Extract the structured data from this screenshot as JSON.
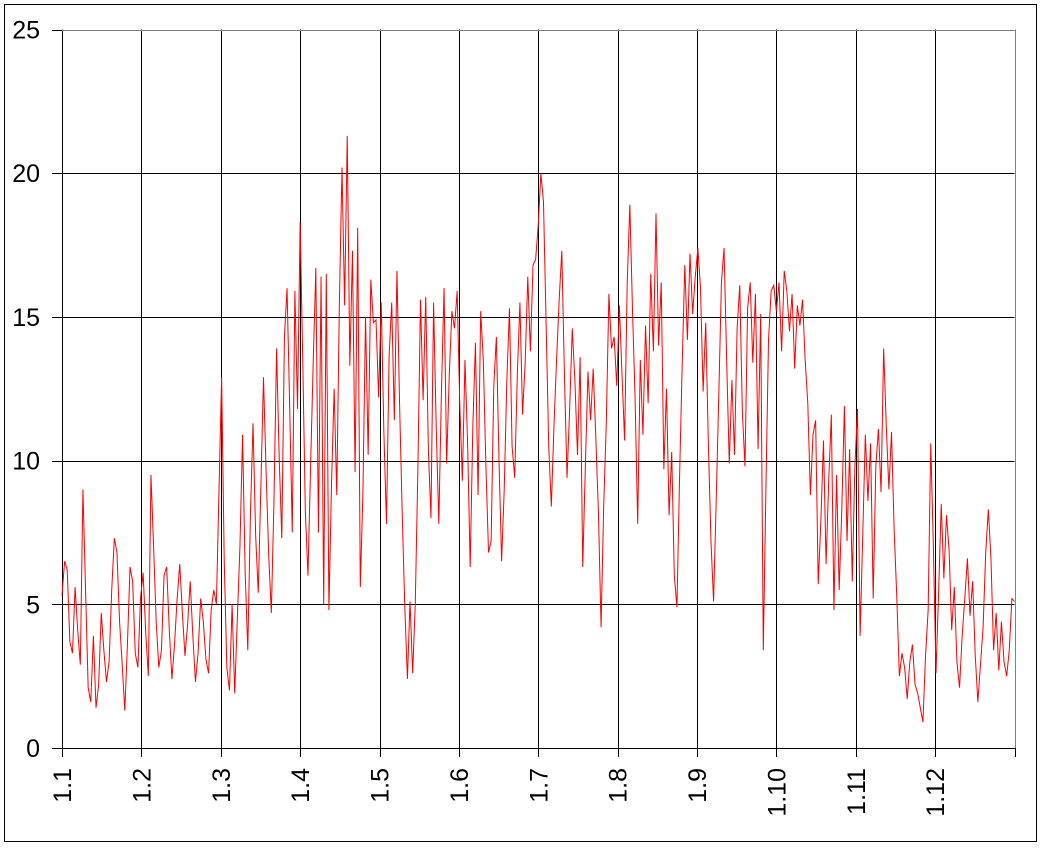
{
  "chart_data": {
    "type": "line",
    "title": "",
    "xlabel": "",
    "ylabel": "",
    "x_tick_labels": [
      "1.1",
      "1.2",
      "1.3",
      "1.4",
      "1.5",
      "1.6",
      "1.7",
      "1.8",
      "1.9",
      "1.10",
      "1.11",
      "1.12"
    ],
    "y_ticks": [
      0,
      5,
      10,
      15,
      20,
      25
    ],
    "ylim": [
      0,
      25
    ],
    "grid": true,
    "legend": false,
    "line_color": "#FF0000",
    "values": [
      5.3,
      6.5,
      6.2,
      3.7,
      3.3,
      5.6,
      4.1,
      2.9,
      9.0,
      5.5,
      2.1,
      1.6,
      3.9,
      1.4,
      2.2,
      4.7,
      3.4,
      2.3,
      3.0,
      5.5,
      7.3,
      6.8,
      4.4,
      2.9,
      1.3,
      3.6,
      6.3,
      5.8,
      3.3,
      2.8,
      5.2,
      6.1,
      4.0,
      2.5,
      9.5,
      7.0,
      4.4,
      2.8,
      3.4,
      6.0,
      6.3,
      4.1,
      2.4,
      3.6,
      5.2,
      6.4,
      4.7,
      3.2,
      4.3,
      5.8,
      3.9,
      2.3,
      3.3,
      5.2,
      4.4,
      3.1,
      2.6,
      4.8,
      5.5,
      5.0,
      9.0,
      12.9,
      6.5,
      2.8,
      2.0,
      5.0,
      1.9,
      4.5,
      7.0,
      10.9,
      6.1,
      3.4,
      8.1,
      11.3,
      7.4,
      5.4,
      9.1,
      12.9,
      9.6,
      6.7,
      4.7,
      8.6,
      13.9,
      10.1,
      7.3,
      14.3,
      16.0,
      11.9,
      7.5,
      15.9,
      11.8,
      18.3,
      13.5,
      8.2,
      6.0,
      9.8,
      13.4,
      16.7,
      7.5,
      16.4,
      5.0,
      16.5,
      4.8,
      9.2,
      12.5,
      8.8,
      15.5,
      20.2,
      15.4,
      21.3,
      13.3,
      17.3,
      9.6,
      18.1,
      5.6,
      8.9,
      15.0,
      10.2,
      16.3,
      14.8,
      14.9,
      12.2,
      15.5,
      11.0,
      7.8,
      13.6,
      15.5,
      11.4,
      16.6,
      12.0,
      8.2,
      4.9,
      2.4,
      5.1,
      2.6,
      5.0,
      9.7,
      15.6,
      12.1,
      15.7,
      10.4,
      8.0,
      15.5,
      11.2,
      7.8,
      12.4,
      16.0,
      9.9,
      13.0,
      15.2,
      14.6,
      15.9,
      12.0,
      9.3,
      13.5,
      10.6,
      6.3,
      11.2,
      14.1,
      8.8,
      15.2,
      13.5,
      9.8,
      6.8,
      7.2,
      12.6,
      14.3,
      10.0,
      6.5,
      9.0,
      12.8,
      15.3,
      10.5,
      9.4,
      13.0,
      15.5,
      11.6,
      13.4,
      16.4,
      13.8,
      16.8,
      17.0,
      18.2,
      20.0,
      19.0,
      14.8,
      10.5,
      8.4,
      11.2,
      13.5,
      15.6,
      17.3,
      13.0,
      9.4,
      11.8,
      14.6,
      12.8,
      10.2,
      13.6,
      6.3,
      9.8,
      13.1,
      11.4,
      13.2,
      10.8,
      8.2,
      4.2,
      8.4,
      11.3,
      15.8,
      13.9,
      14.3,
      12.6,
      15.4,
      13.0,
      10.7,
      16.2,
      18.9,
      15.3,
      12.2,
      7.8,
      13.5,
      10.9,
      14.7,
      12.0,
      16.5,
      13.8,
      18.6,
      14.0,
      16.2,
      9.7,
      12.5,
      8.1,
      10.3,
      6.0,
      4.9,
      9.4,
      13.3,
      16.8,
      14.2,
      17.2,
      15.1,
      16.4,
      17.4,
      16.0,
      12.4,
      14.8,
      10.6,
      7.2,
      5.1,
      8.6,
      12.3,
      16.2,
      17.4,
      13.5,
      9.9,
      12.8,
      10.2,
      14.6,
      16.1,
      11.7,
      9.8,
      15.3,
      16.2,
      13.4,
      15.8,
      10.4,
      15.1,
      3.4,
      9.0,
      14.2,
      15.9,
      16.1,
      15.2,
      16.2,
      13.8,
      16.6,
      15.9,
      14.5,
      15.8,
      13.2,
      15.4,
      14.7,
      15.6,
      13.5,
      12.0,
      8.8,
      10.9,
      11.4,
      5.7,
      7.9,
      10.7,
      6.4,
      9.3,
      11.6,
      4.8,
      9.5,
      5.5,
      8.3,
      11.9,
      7.2,
      10.4,
      5.8,
      9.8,
      11.8,
      3.9,
      7.4,
      10.9,
      8.6,
      10.6,
      5.2,
      9.8,
      11.1,
      8.9,
      13.9,
      11.2,
      9.0,
      11.0,
      7.6,
      5.3,
      2.5,
      3.3,
      2.8,
      1.7,
      3.0,
      3.6,
      2.2,
      1.9,
      1.4,
      0.9,
      3.2,
      4.8,
      10.6,
      7.0,
      2.6,
      5.4,
      8.5,
      5.9,
      8.1,
      6.9,
      4.1,
      5.6,
      3.0,
      2.1,
      3.9,
      5.2,
      6.6,
      4.6,
      5.8,
      3.2,
      1.6,
      2.9,
      4.2,
      6.8,
      8.3,
      6.6,
      3.4,
      4.7,
      2.7,
      4.4,
      3.0,
      2.5,
      3.4,
      5.2,
      5.1
    ]
  },
  "style": {
    "background": "#FFFFFF",
    "figure_border_color": "#000000",
    "grid_color": "#000000",
    "plot_border_color": "#808080",
    "axis_color": "#000000",
    "text_color": "#000000"
  }
}
